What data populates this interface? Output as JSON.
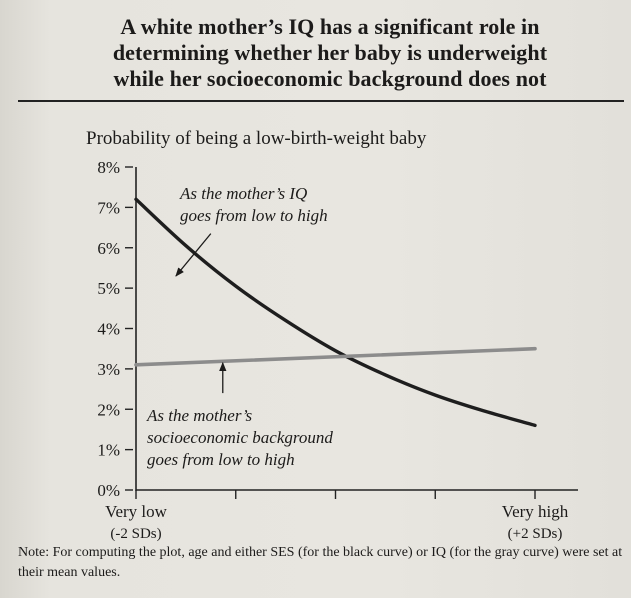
{
  "page": {
    "title_lines": [
      "A white mother’s IQ has a significant role in",
      "determining whether her baby is underweight",
      "while her socioeconomic background does not"
    ],
    "note": "Note: For computing the plot, age and either SES (for the black curve) or IQ (for the gray curve) were set at their mean values."
  },
  "colors": {
    "iq_curve": "#1e1e1e",
    "ses_curve": "#8c8c8c",
    "axis": "#222222",
    "background": "#e6e4de"
  },
  "chart_data": {
    "type": "line",
    "title": "Probability of being a low-birth-weight baby",
    "ylim": [
      0,
      8
    ],
    "xlim": [
      -2,
      2
    ],
    "y_ticks": [
      {
        "value": 0,
        "label": "0%"
      },
      {
        "value": 1,
        "label": "1%"
      },
      {
        "value": 2,
        "label": "2%"
      },
      {
        "value": 3,
        "label": "3%"
      },
      {
        "value": 4,
        "label": "4%"
      },
      {
        "value": 5,
        "label": "5%"
      },
      {
        "value": 6,
        "label": "6%"
      },
      {
        "value": 7,
        "label": "7%"
      },
      {
        "value": 8,
        "label": "8%"
      }
    ],
    "x_ticks": [
      -2,
      -1,
      0,
      1,
      2
    ],
    "x_tick_labels": [
      {
        "value": -2,
        "lines": [
          "Very low",
          "(-2 SDs)"
        ]
      },
      {
        "value": 2,
        "lines": [
          "Very high",
          "(+2 SDs)"
        ]
      }
    ],
    "grid": false,
    "legend": "none",
    "series": [
      {
        "x": [
          -2,
          -1.5,
          -1,
          -0.5,
          0,
          0.5,
          1,
          1.5,
          2
        ],
        "y": [
          7.2,
          6.05,
          5.05,
          4.2,
          3.45,
          2.85,
          2.35,
          1.95,
          1.6
        ],
        "color_key": "iq_curve"
      },
      {
        "x": [
          -2,
          2
        ],
        "y": [
          3.1,
          3.5
        ],
        "color_key": "ses_curve"
      }
    ],
    "annotations": [
      {
        "lines": [
          "As the mother’s IQ",
          "goes from low to high"
        ],
        "target_series": 0,
        "arrow_from_x": -1.25,
        "arrow_from_y": 6.35,
        "arrow_to_x": -1.6,
        "arrow_to_y": 5.3
      },
      {
        "lines": [
          "As the mother’s",
          "socioeconomic background",
          "goes from low to high"
        ],
        "target_series": 1,
        "arrow_from_x": -1.13,
        "arrow_from_y": 2.4,
        "arrow_to_x": -1.13,
        "arrow_to_y": 3.15
      }
    ]
  }
}
